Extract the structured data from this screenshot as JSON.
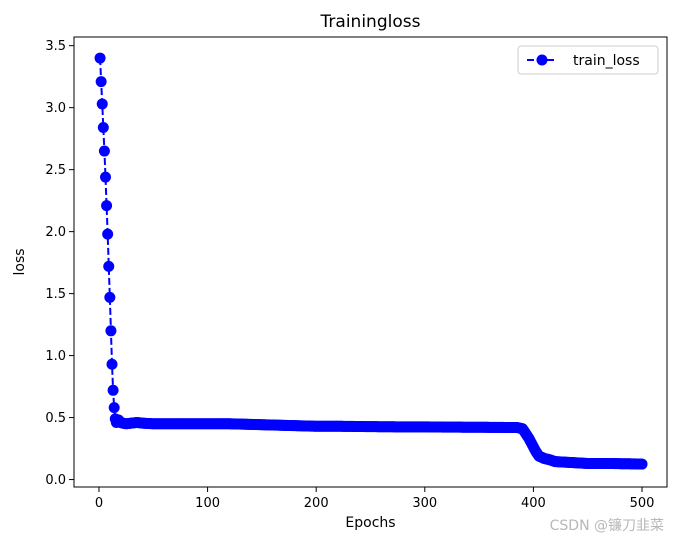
{
  "chart_data": {
    "type": "line",
    "title": "Trainingloss",
    "xlabel": "Epochs",
    "ylabel": "loss",
    "xlim": [
      -23,
      523
    ],
    "ylim": [
      -0.06,
      3.57
    ],
    "xticks": [
      0,
      100,
      200,
      300,
      400,
      500
    ],
    "xtick_labels": [
      "0",
      "100",
      "200",
      "300",
      "400",
      "500"
    ],
    "yticks": [
      0.0,
      0.5,
      1.0,
      1.5,
      2.0,
      2.5,
      3.0,
      3.5
    ],
    "ytick_labels": [
      "0.0",
      "0.5",
      "1.0",
      "1.5",
      "2.0",
      "2.5",
      "3.0",
      "3.5"
    ],
    "grid": false,
    "legend_position": "top-right",
    "series": [
      {
        "name": "train_loss",
        "color": "#0000ff",
        "linestyle": "dashed",
        "marker": "circle",
        "x": [
          1,
          2,
          3,
          4,
          5,
          6,
          7,
          8,
          9,
          10,
          11,
          12,
          13,
          14,
          15,
          16,
          17,
          18,
          19,
          20,
          22,
          25,
          30,
          35,
          40,
          50,
          60,
          80,
          100,
          120,
          140,
          160,
          180,
          200,
          220,
          250,
          280,
          300,
          320,
          350,
          380,
          385,
          390,
          393,
          396,
          399,
          402,
          405,
          410,
          415,
          420,
          430,
          440,
          450,
          460,
          470,
          480,
          490,
          500
        ],
        "y": [
          3.4,
          3.21,
          3.03,
          2.84,
          2.65,
          2.44,
          2.21,
          1.98,
          1.72,
          1.47,
          1.2,
          0.93,
          0.72,
          0.58,
          0.49,
          0.46,
          0.47,
          0.48,
          0.47,
          0.46,
          0.455,
          0.45,
          0.455,
          0.46,
          0.455,
          0.45,
          0.45,
          0.45,
          0.45,
          0.45,
          0.445,
          0.44,
          0.435,
          0.43,
          0.43,
          0.427,
          0.425,
          0.425,
          0.423,
          0.422,
          0.42,
          0.42,
          0.41,
          0.37,
          0.33,
          0.28,
          0.23,
          0.19,
          0.17,
          0.16,
          0.145,
          0.14,
          0.135,
          0.13,
          0.13,
          0.13,
          0.128,
          0.127,
          0.125
        ]
      }
    ]
  },
  "watermark": "CSDN @镰刀韭菜"
}
